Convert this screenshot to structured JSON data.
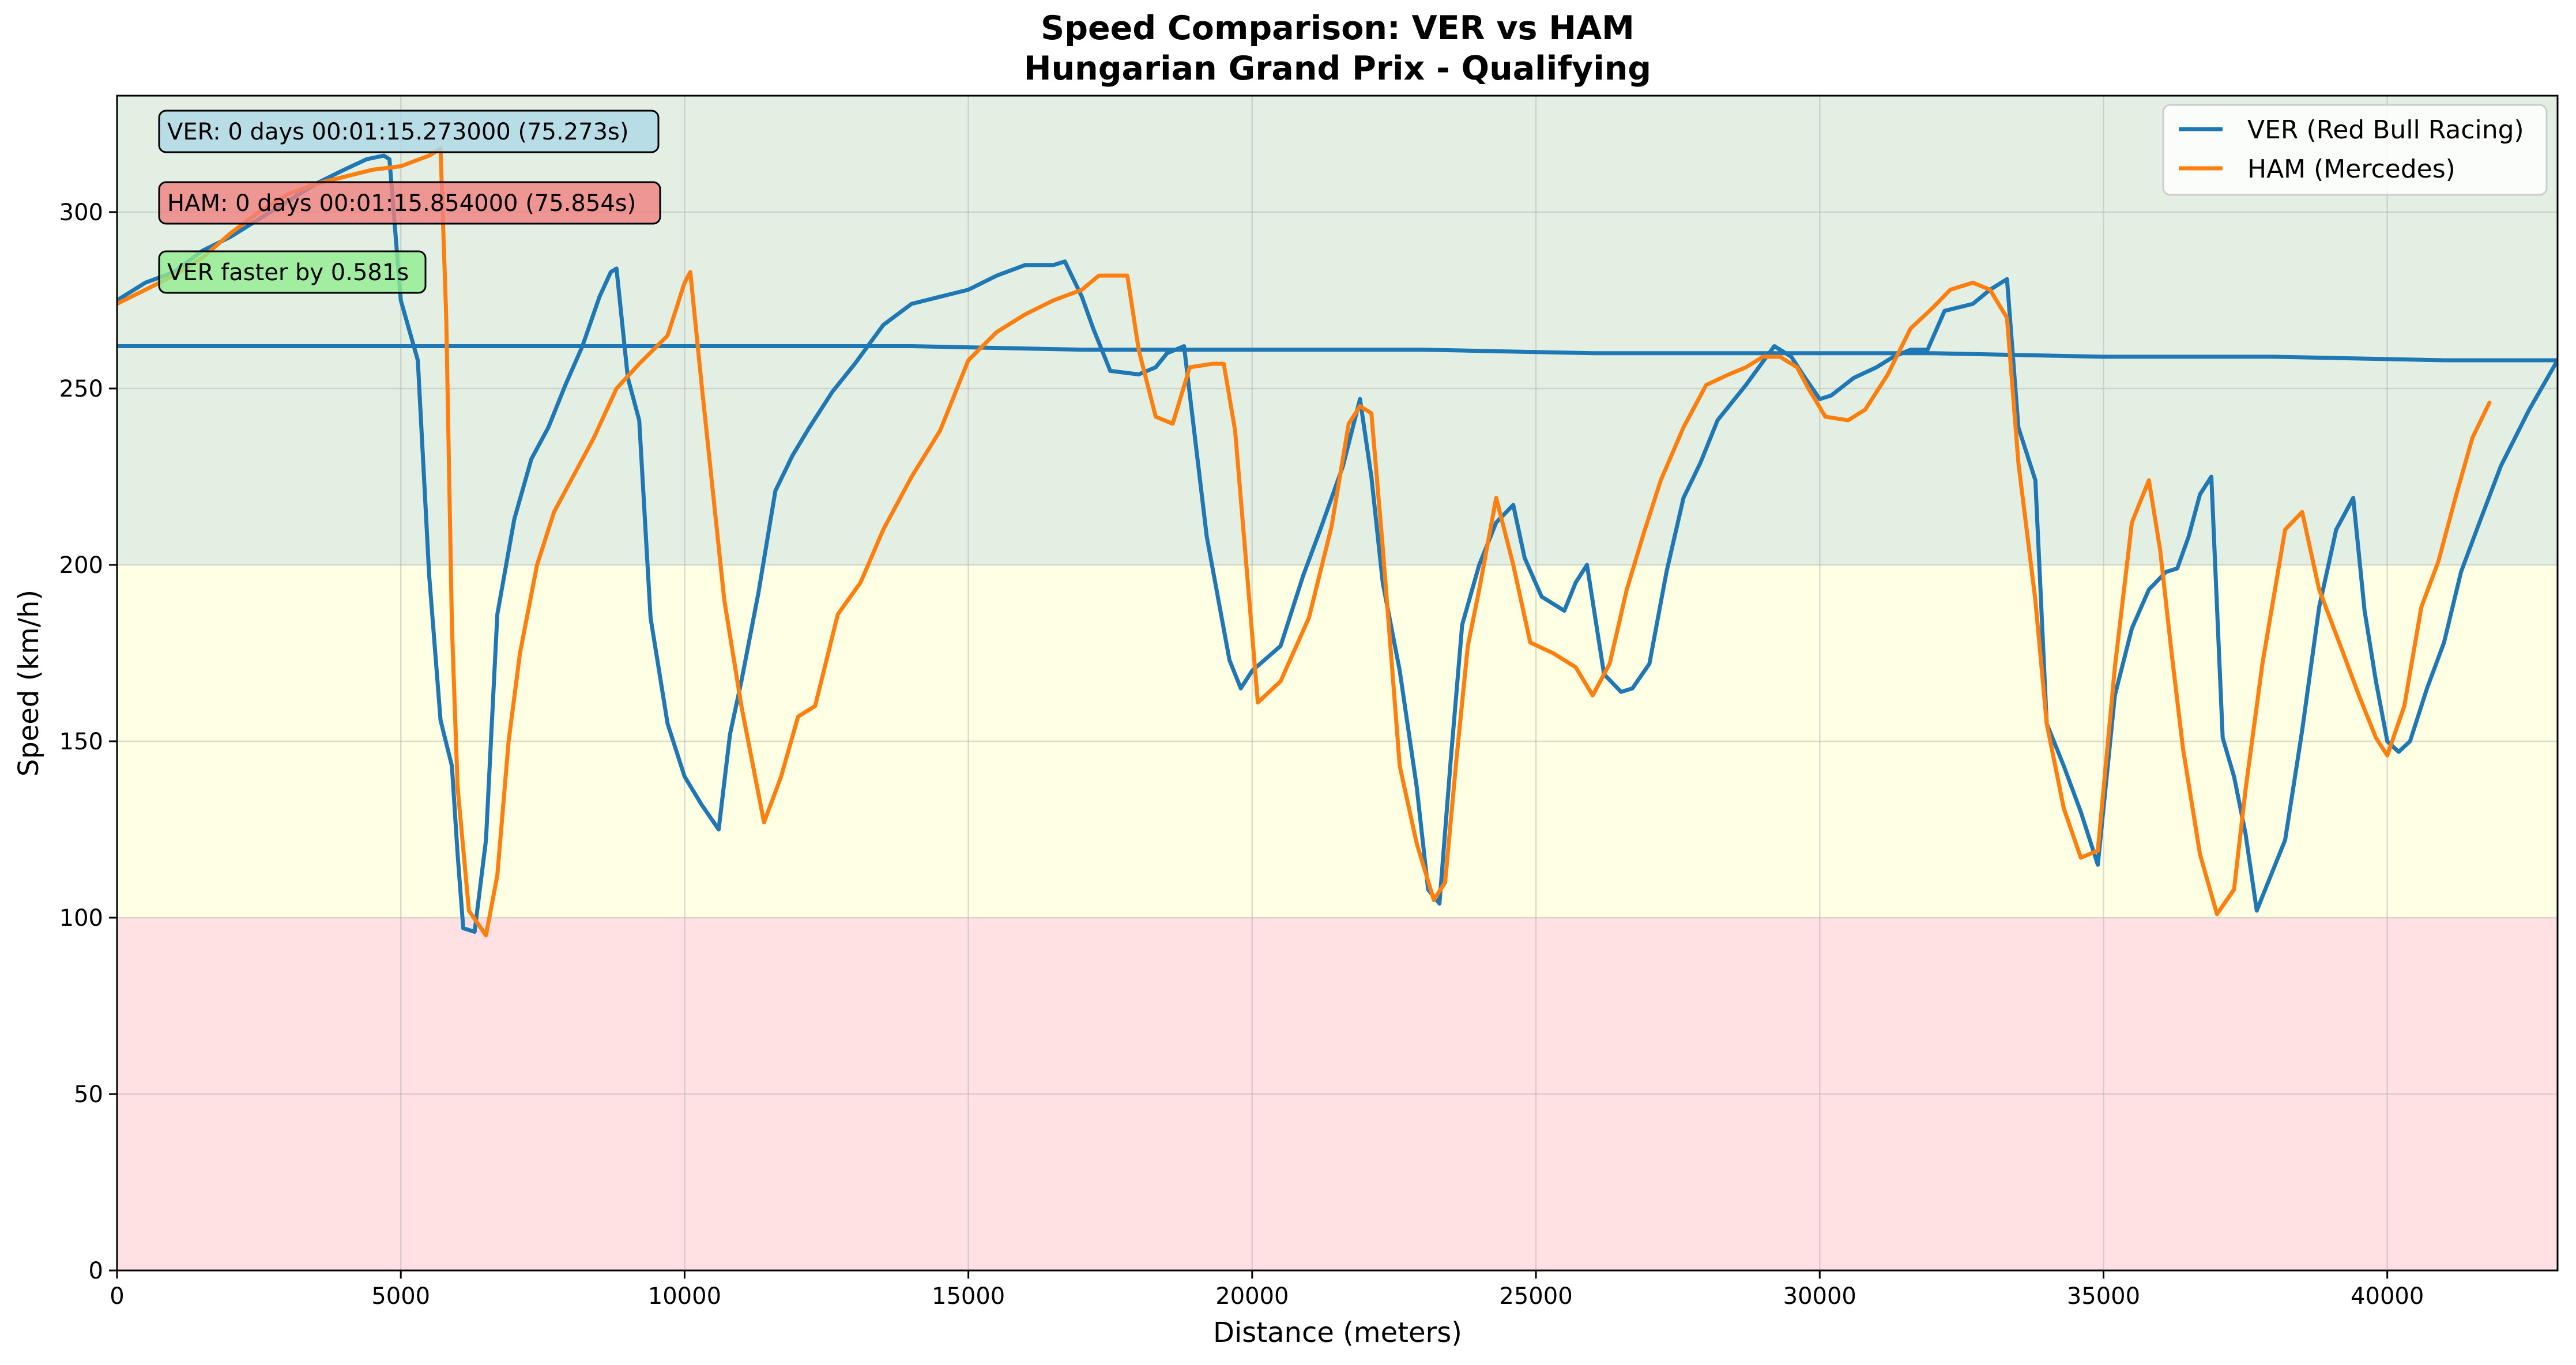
{
  "chart_data": {
    "type": "line",
    "title_line1": "Speed Comparison: VER vs HAM",
    "title_line2": "Hungarian Grand Prix - Qualifying",
    "xlabel": "Distance (meters)",
    "ylabel": "Speed (km/h)",
    "xlim": [
      0,
      43000
    ],
    "ylim": [
      0,
      333
    ],
    "xticks": [
      0,
      5000,
      10000,
      15000,
      20000,
      25000,
      30000,
      35000,
      40000
    ],
    "yticks": [
      0,
      50,
      100,
      150,
      200,
      250,
      300
    ],
    "grid": true,
    "legend_position": "top-right",
    "bands": [
      {
        "from": 0,
        "to": 100,
        "color": "#ffe0e3"
      },
      {
        "from": 100,
        "to": 200,
        "color": "#ffffe3"
      },
      {
        "from": 200,
        "to": 333,
        "color": "#e3efe3"
      }
    ],
    "annotations": [
      {
        "text": "VER: 0 days 00:01:15.273000 (75.273s)",
        "color": "#add8e6"
      },
      {
        "text": "HAM: 0 days 00:01:15.854000 (75.854s)",
        "color": "#f08080"
      },
      {
        "text": "VER faster by 0.581s",
        "color": "#90ee90"
      }
    ],
    "series": [
      {
        "name": "VER (Red Bull Racing)",
        "color": "#1f77b4",
        "x": [
          0,
          500,
          1000,
          1500,
          2000,
          2500,
          3000,
          3500,
          4000,
          4400,
          4700,
          4800,
          5000,
          5300,
          5500,
          5700,
          5900,
          6000,
          6100,
          6300,
          6500,
          6700,
          7000,
          7300,
          7600,
          7900,
          8200,
          8500,
          8700,
          8800,
          9000,
          9200,
          9400,
          9700,
          10000,
          10300,
          10600,
          10800,
          11000,
          11300,
          11600,
          11900,
          12200,
          12600,
          13000,
          13500,
          14000,
          14500,
          15000,
          15500,
          16000,
          16500,
          16700,
          17000,
          17200,
          17500,
          18000,
          18300,
          18500,
          18800,
          19200,
          19600,
          19800,
          20000,
          20500,
          20900,
          21200,
          21600,
          21900,
          22100,
          22300,
          22600,
          22900,
          23100,
          23300,
          23500,
          23700,
          24000,
          24300,
          24600,
          24800,
          25100,
          25500,
          25700,
          25900,
          26200,
          26500,
          26700,
          27000,
          27300,
          27600,
          27900,
          28200,
          28700,
          29200,
          29500,
          29700,
          30000,
          30200,
          30600,
          31000,
          31300,
          31600,
          31900,
          32200,
          32700,
          33000,
          33300,
          33500,
          33800,
          34000,
          34300,
          34600,
          34900,
          35200,
          35500,
          35800,
          36100,
          36300,
          36500,
          36700,
          36900,
          37100,
          37300,
          37500,
          37700,
          37900,
          38200,
          38500,
          38800,
          39100,
          39400,
          39600,
          39800,
          40000,
          40200,
          40400,
          40700,
          41000,
          41300,
          41600,
          42000,
          42500,
          43000,
          42800,
          41000,
          38000,
          35000,
          32000,
          29000,
          26000,
          23000,
          20000,
          17000,
          14000,
          11000,
          8000,
          5000,
          2000,
          0
        ],
        "y": [
          275,
          280,
          283,
          289,
          293,
          298,
          303,
          308,
          312,
          315,
          316,
          315,
          275,
          258,
          197,
          156,
          143,
          118,
          97,
          96,
          122,
          186,
          213,
          230,
          239,
          251,
          262,
          276,
          283,
          284,
          253,
          241,
          185,
          155,
          140,
          132,
          125,
          152,
          167,
          192,
          221,
          231,
          239,
          249,
          257,
          268,
          274,
          276,
          278,
          282,
          285,
          285,
          286,
          276,
          267,
          255,
          254,
          256,
          260,
          262,
          208,
          173,
          165,
          170,
          177,
          197,
          210,
          228,
          247,
          225,
          195,
          170,
          137,
          108,
          104,
          145,
          183,
          200,
          212,
          217,
          202,
          191,
          187,
          195,
          200,
          169,
          164,
          165,
          172,
          198,
          219,
          229,
          241,
          251,
          262,
          259,
          254,
          247,
          248,
          253,
          256,
          259,
          261,
          261,
          272,
          274,
          278,
          281,
          239,
          224,
          155,
          143,
          130,
          115,
          163,
          182,
          193,
          198,
          199,
          208,
          220,
          225,
          151,
          140,
          124,
          102,
          110,
          122,
          153,
          188,
          210,
          219,
          187,
          167,
          150,
          147,
          150,
          165,
          178,
          198,
          211,
          228,
          244,
          258,
          258,
          258,
          259,
          259,
          260,
          260,
          260,
          261,
          261,
          261,
          262,
          262,
          262,
          262,
          262,
          262
        ]
      },
      {
        "name": "HAM (Mercedes)",
        "color": "#ff7f0e",
        "x": [
          0,
          500,
          1000,
          1500,
          2000,
          2500,
          3000,
          3500,
          4000,
          4500,
          5000,
          5500,
          5600,
          5700,
          5800,
          5900,
          6000,
          6200,
          6500,
          6700,
          6900,
          7100,
          7400,
          7700,
          8000,
          8400,
          8800,
          9200,
          9700,
          10000,
          10100,
          10300,
          10700,
          11000,
          11400,
          11700,
          12000,
          12300,
          12700,
          13100,
          13500,
          14000,
          14500,
          15000,
          15500,
          16000,
          16500,
          17000,
          17300,
          17600,
          17800,
          18000,
          18300,
          18600,
          18900,
          19300,
          19500,
          19700,
          20100,
          20500,
          21000,
          21400,
          21700,
          21900,
          22100,
          22300,
          22600,
          22900,
          23200,
          23400,
          23600,
          23800,
          24000,
          24300,
          24600,
          24900,
          25300,
          25700,
          26000,
          26300,
          26600,
          26900,
          27200,
          27600,
          28000,
          28400,
          28700,
          29000,
          29300,
          29600,
          29800,
          30100,
          30500,
          30800,
          31200,
          31600,
          32000,
          32300,
          32700,
          33000,
          33300,
          33500,
          33800,
          34000,
          34300,
          34600,
          34900,
          35200,
          35500,
          35800,
          36000,
          36200,
          36400,
          36700,
          37000,
          37300,
          37500,
          37800,
          38200,
          38500,
          38800,
          39200,
          39500,
          39800,
          40000,
          40300,
          40600,
          40900,
          41200,
          41500,
          41800
        ],
        "y": [
          274,
          278,
          282,
          287,
          294,
          300,
          305,
          308,
          310,
          312,
          313,
          316,
          317,
          318,
          270,
          183,
          137,
          102,
          95,
          112,
          150,
          175,
          200,
          215,
          224,
          236,
          250,
          257,
          265,
          280,
          283,
          251,
          190,
          160,
          127,
          140,
          157,
          160,
          186,
          195,
          210,
          225,
          238,
          258,
          266,
          271,
          275,
          278,
          282,
          282,
          282,
          261,
          242,
          240,
          256,
          257,
          257,
          238,
          161,
          167,
          185,
          211,
          240,
          245,
          243,
          205,
          143,
          121,
          105,
          110,
          145,
          177,
          193,
          219,
          200,
          178,
          175,
          171,
          163,
          172,
          193,
          209,
          224,
          239,
          251,
          254,
          256,
          259,
          259,
          256,
          250,
          242,
          241,
          244,
          254,
          267,
          273,
          278,
          280,
          278,
          270,
          229,
          190,
          155,
          131,
          117,
          119,
          171,
          212,
          224,
          204,
          175,
          148,
          118,
          101,
          108,
          136,
          172,
          210,
          215,
          193,
          176,
          163,
          151,
          146,
          160,
          188,
          201,
          219,
          236,
          246
        ]
      }
    ]
  }
}
